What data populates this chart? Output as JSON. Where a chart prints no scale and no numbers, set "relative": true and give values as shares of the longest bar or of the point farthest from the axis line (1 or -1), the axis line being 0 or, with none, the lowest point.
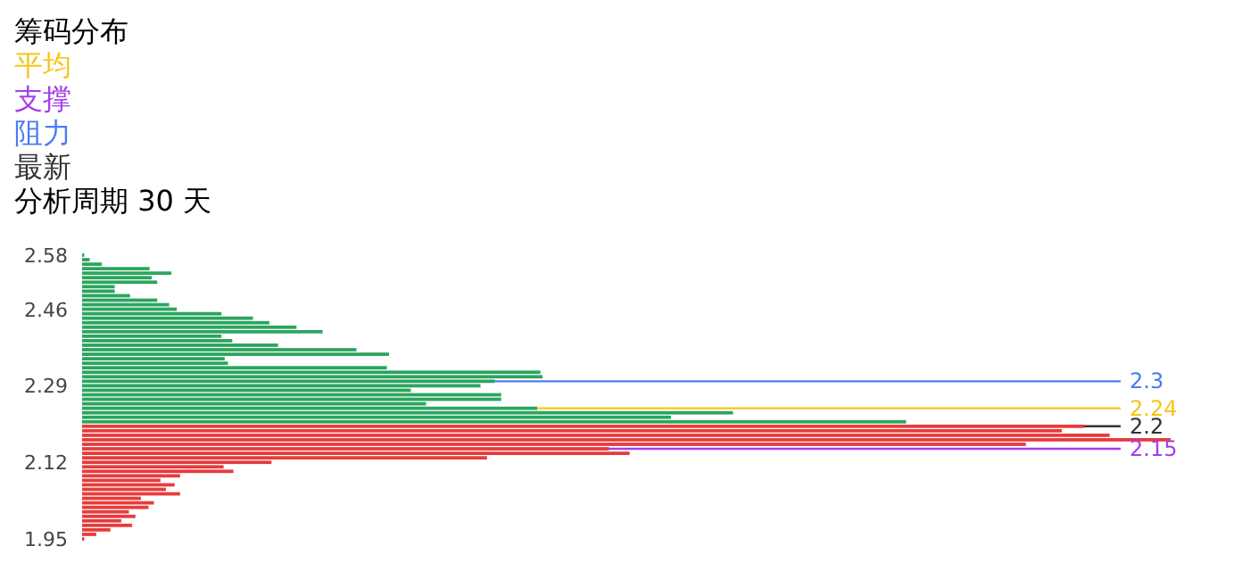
{
  "chart_data": {
    "type": "bar",
    "orientation": "horizontal",
    "relative": true,
    "title": "筹码分布",
    "annotations": [
      "平均",
      "支撑",
      "阻力",
      "最新",
      "分析周期 30 天"
    ],
    "x": [
      2.58,
      2.57,
      2.56,
      2.55,
      2.54,
      2.53,
      2.52,
      2.51,
      2.5,
      2.49,
      2.48,
      2.47,
      2.46,
      2.45,
      2.44,
      2.43,
      2.42,
      2.41,
      2.4,
      2.39,
      2.38,
      2.37,
      2.36,
      2.35,
      2.34,
      2.33,
      2.32,
      2.31,
      2.3,
      2.29,
      2.28,
      2.27,
      2.26,
      2.25,
      2.24,
      2.23,
      2.22,
      2.21,
      2.2,
      2.19,
      2.18,
      2.17,
      2.16,
      2.15,
      2.14,
      2.13,
      2.12,
      2.11,
      2.1,
      2.09,
      2.08,
      2.07,
      2.06,
      2.05,
      2.04,
      2.03,
      2.02,
      2.01,
      2.0,
      1.99,
      1.98,
      1.97,
      1.96,
      1.95
    ],
    "values": [
      0.002,
      0.007,
      0.018,
      0.062,
      0.082,
      0.064,
      0.069,
      0.03,
      0.03,
      0.044,
      0.069,
      0.08,
      0.087,
      0.128,
      0.157,
      0.172,
      0.197,
      0.221,
      0.128,
      0.138,
      0.18,
      0.252,
      0.282,
      0.131,
      0.134,
      0.28,
      0.421,
      0.423,
      0.379,
      0.366,
      0.302,
      0.385,
      0.385,
      0.316,
      0.418,
      0.598,
      0.541,
      0.757,
      0.921,
      0.9,
      0.944,
      1,
      0.867,
      0.484,
      0.503,
      0.372,
      0.174,
      0.13,
      0.139,
      0.09,
      0.072,
      0.085,
      0.077,
      0.09,
      0.054,
      0.066,
      0.061,
      0.043,
      0.049,
      0.036,
      0.046,
      0.026,
      0.013,
      0.002
    ],
    "colors": [
      "#2ba55e",
      "#2ba55e",
      "#2ba55e",
      "#2ba55e",
      "#2ba55e",
      "#2ba55e",
      "#2ba55e",
      "#2ba55e",
      "#2ba55e",
      "#2ba55e",
      "#2ba55e",
      "#2ba55e",
      "#2ba55e",
      "#2ba55e",
      "#2ba55e",
      "#2ba55e",
      "#2ba55e",
      "#2ba55e",
      "#2ba55e",
      "#2ba55e",
      "#2ba55e",
      "#2ba55e",
      "#2ba55e",
      "#2ba55e",
      "#2ba55e",
      "#2ba55e",
      "#2ba55e",
      "#2ba55e",
      "#2ba55e",
      "#2ba55e",
      "#2ba55e",
      "#2ba55e",
      "#2ba55e",
      "#2ba55e",
      "#2ba55e",
      "#2ba55e",
      "#2ba55e",
      "#2ba55e",
      "#e83b3b",
      "#e83b3b",
      "#e83b3b",
      "#e83b3b",
      "#e83b3b",
      "#e83b3b",
      "#e83b3b",
      "#e83b3b",
      "#e83b3b",
      "#e83b3b",
      "#e83b3b",
      "#e83b3b",
      "#e83b3b",
      "#e83b3b",
      "#e83b3b",
      "#e83b3b",
      "#e83b3b",
      "#e83b3b",
      "#e83b3b",
      "#e83b3b",
      "#e83b3b",
      "#e83b3b",
      "#e83b3b",
      "#e83b3b",
      "#e83b3b",
      "#e83b3b"
    ],
    "ylim": [
      1.95,
      2.58
    ],
    "yticks": [
      2.58,
      2.46,
      2.29,
      2.12,
      1.95
    ],
    "ref_lines": [
      {
        "axis": "y",
        "value": 2.24,
        "label": "2.24",
        "color": "#f5c518"
      },
      {
        "axis": "y",
        "value": 2.15,
        "label": "2.15",
        "color": "#a43ee8"
      },
      {
        "axis": "y",
        "value": 2.3,
        "label": "2.3",
        "color": "#4a7cf0"
      },
      {
        "axis": "y",
        "value": 2.2,
        "label": "2.2",
        "color": "#333333"
      }
    ]
  }
}
